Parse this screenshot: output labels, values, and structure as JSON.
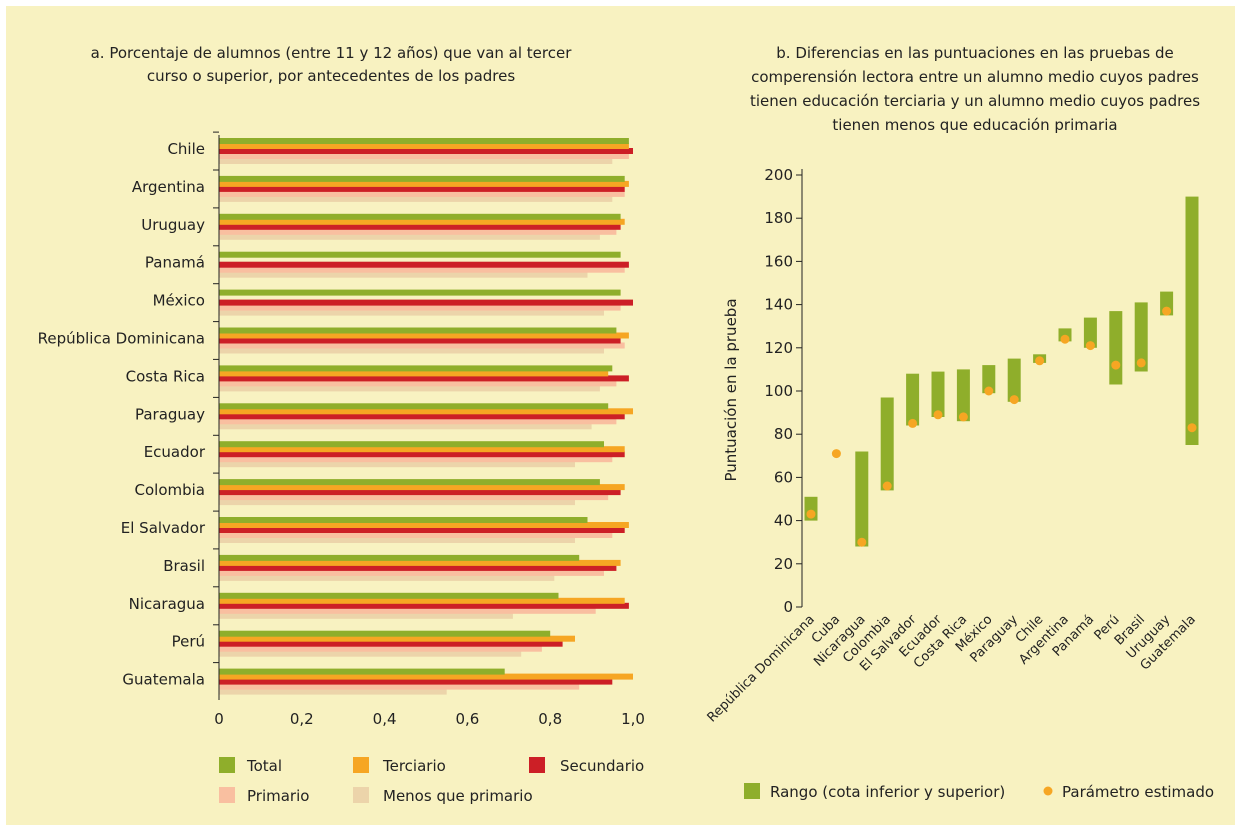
{
  "chart_data": [
    {
      "type": "bar",
      "orientation": "horizontal",
      "title_lines": [
        "a.  Porcentaje de alumnos (entre 11 y 12 años) que van al tercer",
        "curso o superior, por antecedentes de los padres"
      ],
      "categories": [
        "Chile",
        "Argentina",
        "Uruguay",
        "Panamá",
        "México",
        "República Dominicana",
        "Costa Rica",
        "Paraguay",
        "Ecuador",
        "Colombia",
        "El Salvador",
        "Brasil",
        "Nicaragua",
        "Perú",
        "Guatemala"
      ],
      "series": [
        {
          "name": "Total",
          "color": "#8fae2b",
          "values": [
            0.99,
            0.98,
            0.97,
            0.97,
            0.97,
            0.96,
            0.95,
            0.94,
            0.93,
            0.92,
            0.89,
            0.87,
            0.82,
            0.8,
            0.69
          ]
        },
        {
          "name": "Terciario",
          "color": "#f6a623",
          "values": [
            0.99,
            0.99,
            0.98,
            null,
            null,
            0.99,
            0.94,
            1.0,
            0.98,
            0.98,
            0.99,
            0.97,
            0.98,
            0.86,
            1.0
          ]
        },
        {
          "name": "Secundario",
          "color": "#cc1f26",
          "values": [
            1.0,
            0.98,
            0.97,
            0.99,
            1.0,
            0.97,
            0.99,
            0.98,
            0.98,
            0.97,
            0.98,
            0.96,
            0.99,
            0.83,
            0.95
          ]
        },
        {
          "name": "Primario",
          "color": "#f9bfa0",
          "values": [
            0.99,
            0.98,
            0.96,
            0.98,
            0.97,
            0.98,
            0.96,
            0.96,
            0.95,
            0.94,
            0.95,
            0.93,
            0.91,
            0.78,
            0.87
          ]
        },
        {
          "name": "Menos que primario",
          "color": "#ecd4aa",
          "values": [
            0.95,
            0.95,
            0.92,
            0.89,
            0.93,
            0.93,
            0.92,
            0.9,
            0.86,
            0.86,
            0.86,
            0.81,
            0.71,
            0.73,
            0.55
          ]
        }
      ],
      "xlim": [
        0,
        1.0
      ],
      "xticks": [
        "0",
        "0,2",
        "0,4",
        "0,6",
        "0,8",
        "1,0"
      ],
      "legend_position": "bottom"
    },
    {
      "type": "range",
      "title_lines": [
        "b.  Diferencias en las puntuaciones en las pruebas de",
        "comperensión lectora entre un alumno medio cuyos padres",
        "tienen educación terciaria y un alumno medio cuyos padres",
        "tienen menos que educación primaria"
      ],
      "ylabel": "Puntuación en la prueba",
      "categories": [
        "República Dominicana",
        "Cuba",
        "Nicaragua",
        "Colombia",
        "El Salvador",
        "Ecuador",
        "Costa Rica",
        "México",
        "Paraguay",
        "Chile",
        "Argentina",
        "Panamá",
        "Perú",
        "Brasil",
        "Uruguay",
        "Guatemala"
      ],
      "range_low": [
        40,
        null,
        28,
        54,
        84,
        88,
        86,
        99,
        95,
        113,
        123,
        120,
        103,
        109,
        135,
        75
      ],
      "range_high": [
        51,
        null,
        72,
        97,
        108,
        109,
        110,
        112,
        115,
        117,
        129,
        134,
        137,
        141,
        146,
        190
      ],
      "estimate": [
        43,
        71,
        30,
        56,
        85,
        89,
        88,
        100,
        96,
        114,
        124,
        121,
        112,
        113,
        137,
        83
      ],
      "ylim": [
        0,
        200
      ],
      "yticks": [
        "0",
        "20",
        "40",
        "60",
        "80",
        "100",
        "120",
        "140",
        "160",
        "180",
        "200"
      ],
      "legend": {
        "range_label": "Rango (cota inferior y superior)",
        "estimate_label": "Parámetro estimado"
      },
      "colors": {
        "range": "#8fae2b",
        "estimate": "#f6a623"
      },
      "legend_position": "bottom"
    }
  ]
}
